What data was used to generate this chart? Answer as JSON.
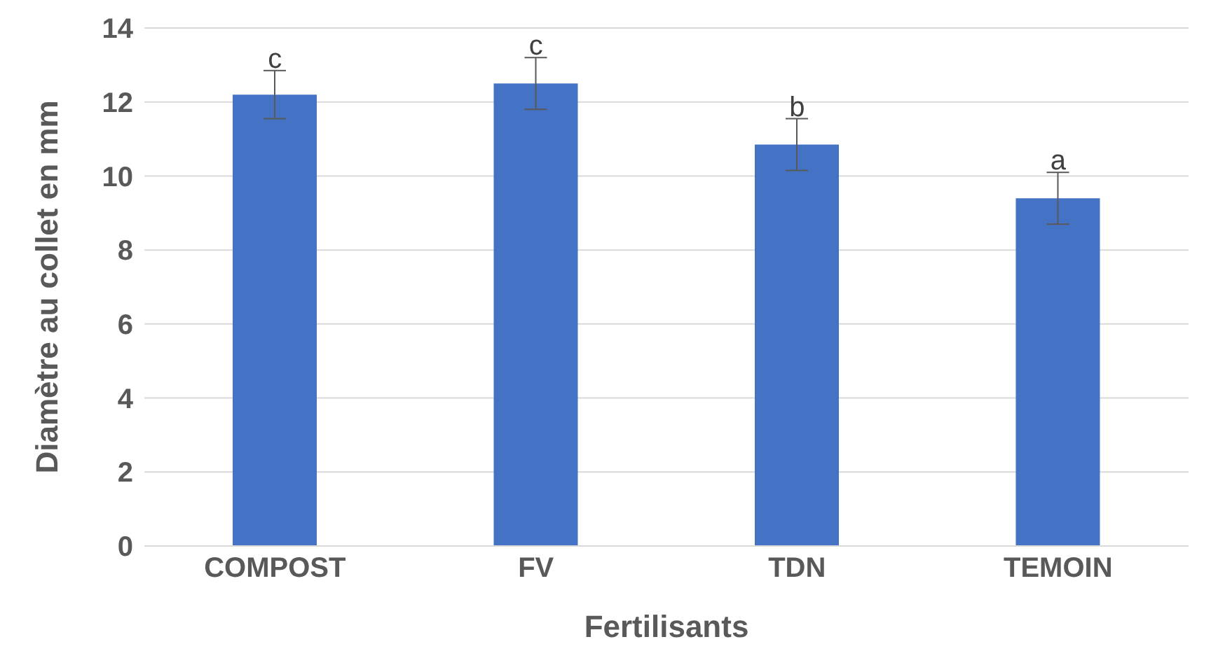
{
  "chart_data": {
    "type": "bar",
    "xlabel": "Fertilisants",
    "ylabel": "Diamètre au collet en mm",
    "categories": [
      "COMPOST",
      "FV",
      "TDN",
      "TEMOIN"
    ],
    "values": [
      12.2,
      12.5,
      10.85,
      9.4
    ],
    "errors": [
      0.65,
      0.7,
      0.7,
      0.7
    ],
    "color": "#4472c4",
    "ylim": [
      0,
      14
    ],
    "yticks": [
      0,
      2,
      4,
      6,
      8,
      10,
      12,
      14
    ],
    "grid": "y",
    "annotations": [
      {
        "text": "c",
        "x": "COMPOST",
        "y": 12.85
      },
      {
        "text": "c",
        "x": "FV",
        "y": 13.2
      },
      {
        "text": "b",
        "x": "TDN",
        "y": 11.55
      },
      {
        "text": "a",
        "x": "TEMOIN",
        "y": 10.1
      }
    ]
  }
}
